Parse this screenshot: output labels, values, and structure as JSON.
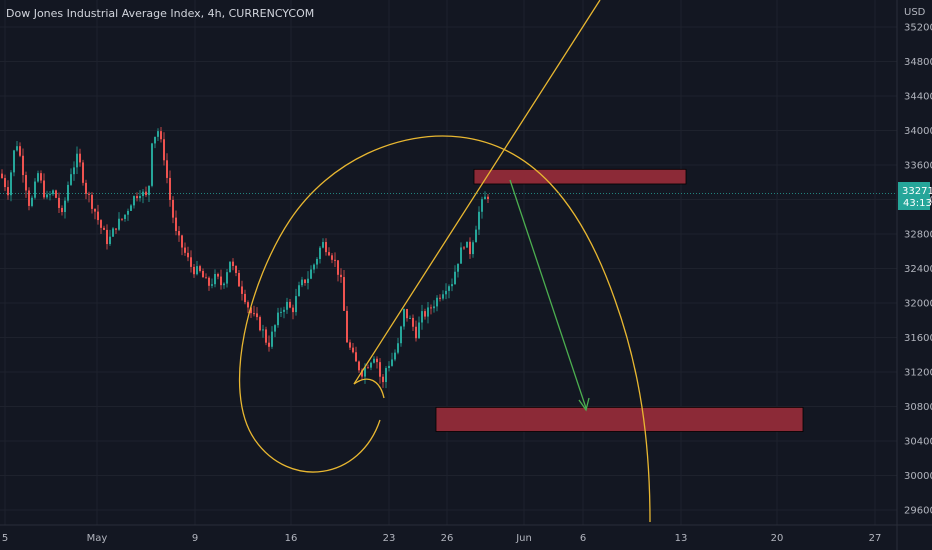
{
  "chart_data": {
    "type": "candlestick",
    "title": "Dow Jones Industrial Average Index, 4h, CURRENCYCOM",
    "currency": "USD",
    "current_price": "33271",
    "countdown": "43:13",
    "y_ticks": [
      "35200",
      "34800",
      "34400",
      "34000",
      "33600",
      "33200",
      "32800",
      "32400",
      "32000",
      "31600",
      "31200",
      "30800",
      "30400",
      "30000",
      "29600"
    ],
    "x_ticks": [
      "5",
      "May",
      "9",
      "16",
      "23",
      "26",
      "Jun",
      "6",
      "13",
      "20",
      "27"
    ],
    "colors": {
      "up": "#26a69a",
      "down": "#ef5350",
      "zone_fill": "#8c2a37",
      "drawing": "#e8b731",
      "arrow": "#4caf50",
      "price_line": "#26a69a"
    },
    "zones": [
      {
        "name": "resistance-zone",
        "y_low": 33380,
        "y_high": 33550
      },
      {
        "name": "target-zone",
        "y_low": 30510,
        "y_high": 30790
      }
    ]
  }
}
